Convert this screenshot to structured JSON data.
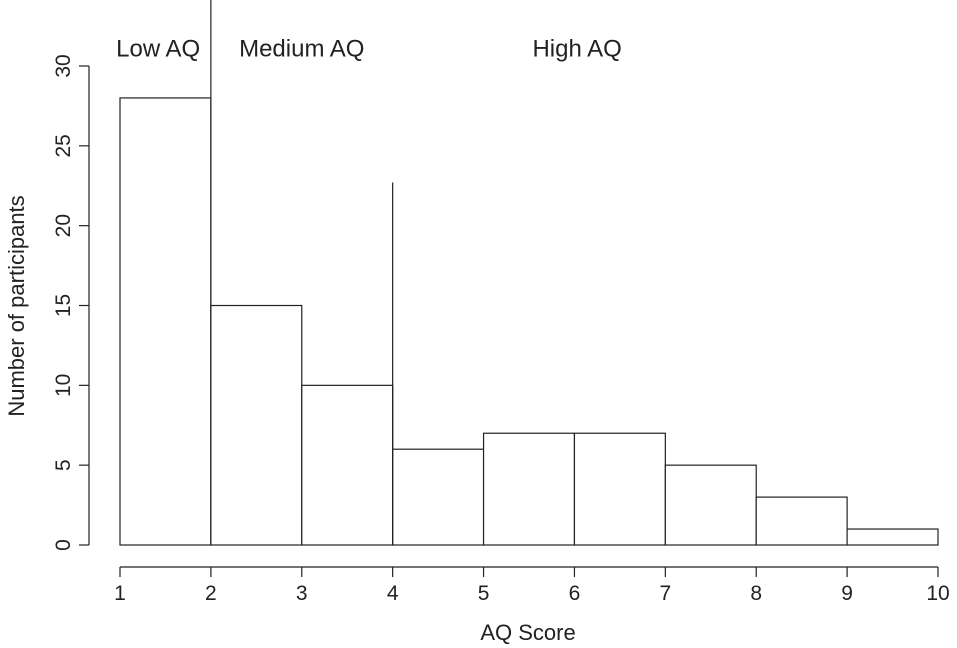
{
  "chart_data": {
    "type": "bar",
    "title": "",
    "xlabel": "AQ Score",
    "ylabel": "Number of participants",
    "bins": [
      {
        "x0": 1,
        "x1": 2,
        "value": 28
      },
      {
        "x0": 2,
        "x1": 3,
        "value": 15
      },
      {
        "x0": 3,
        "x1": 4,
        "value": 10
      },
      {
        "x0": 4,
        "x1": 5,
        "value": 6
      },
      {
        "x0": 5,
        "x1": 6,
        "value": 7
      },
      {
        "x0": 6,
        "x1": 7,
        "value": 7
      },
      {
        "x0": 7,
        "x1": 8,
        "value": 5
      },
      {
        "x0": 8,
        "x1": 9,
        "value": 3
      },
      {
        "x0": 9,
        "x1": 10,
        "value": 1
      }
    ],
    "xlim": [
      1,
      10
    ],
    "ylim": [
      0,
      30
    ],
    "xticks": [
      "1",
      "2",
      "3",
      "4",
      "5",
      "6",
      "7",
      "8",
      "9",
      "10"
    ],
    "yticks": [
      "0",
      "5",
      "10",
      "15",
      "20",
      "25",
      "30"
    ],
    "grid": false,
    "dividers": [
      {
        "x": 2,
        "y_top": 34.3
      },
      {
        "x": 4,
        "y_top": 22.7
      }
    ],
    "regions": [
      {
        "label": "Low AQ",
        "x": 1.42,
        "y": 30.6
      },
      {
        "label": "Medium AQ",
        "x": 3.0,
        "y": 30.6
      },
      {
        "label": "High AQ",
        "x": 6.03,
        "y": 30.6
      }
    ]
  }
}
